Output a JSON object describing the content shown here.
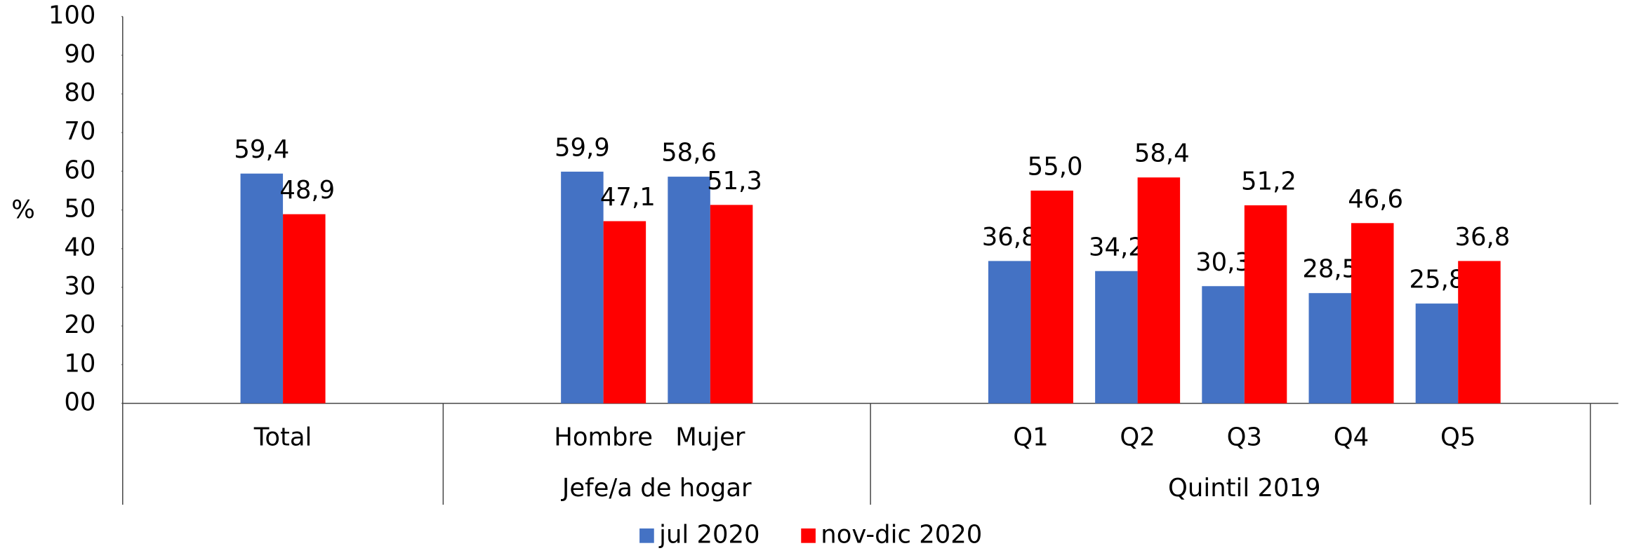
{
  "chart_data": {
    "type": "bar",
    "y_label": "%",
    "categories": [
      null,
      "Total",
      null,
      null,
      "Hombre",
      "Mujer",
      null,
      null,
      "Q1",
      "Q2",
      "Q3",
      "Q4",
      "Q5",
      null
    ],
    "group_labels": [
      "Jefe/a de hogar",
      "Quintil 2019"
    ],
    "series": [
      {
        "name": "jul 2020",
        "color": "#4472c4",
        "values": [
          null,
          59.4,
          null,
          null,
          59.9,
          58.6,
          null,
          null,
          36.8,
          34.2,
          30.3,
          28.5,
          25.8,
          null
        ],
        "value_labels": [
          null,
          "59,4",
          null,
          null,
          "59,9",
          "58,6",
          null,
          null,
          "36,8",
          "34,2",
          "30,3",
          "28,5",
          "25,8",
          null
        ]
      },
      {
        "name": "nov-dic 2020",
        "color": "#ff0000",
        "values": [
          null,
          48.9,
          null,
          null,
          47.1,
          51.3,
          null,
          null,
          55.0,
          58.4,
          51.2,
          46.6,
          36.8,
          null
        ],
        "value_labels": [
          null,
          "48,9",
          null,
          null,
          "47,1",
          "51,3",
          null,
          null,
          "55,0",
          "58,4",
          "51,2",
          "46,6",
          "36,8",
          null
        ]
      }
    ],
    "ylim": [
      0,
      100
    ],
    "yticks": [
      {
        "value": 0,
        "label": "00"
      },
      10,
      20,
      30,
      40,
      50,
      60,
      70,
      80,
      90,
      100
    ],
    "legend": "bottom"
  }
}
